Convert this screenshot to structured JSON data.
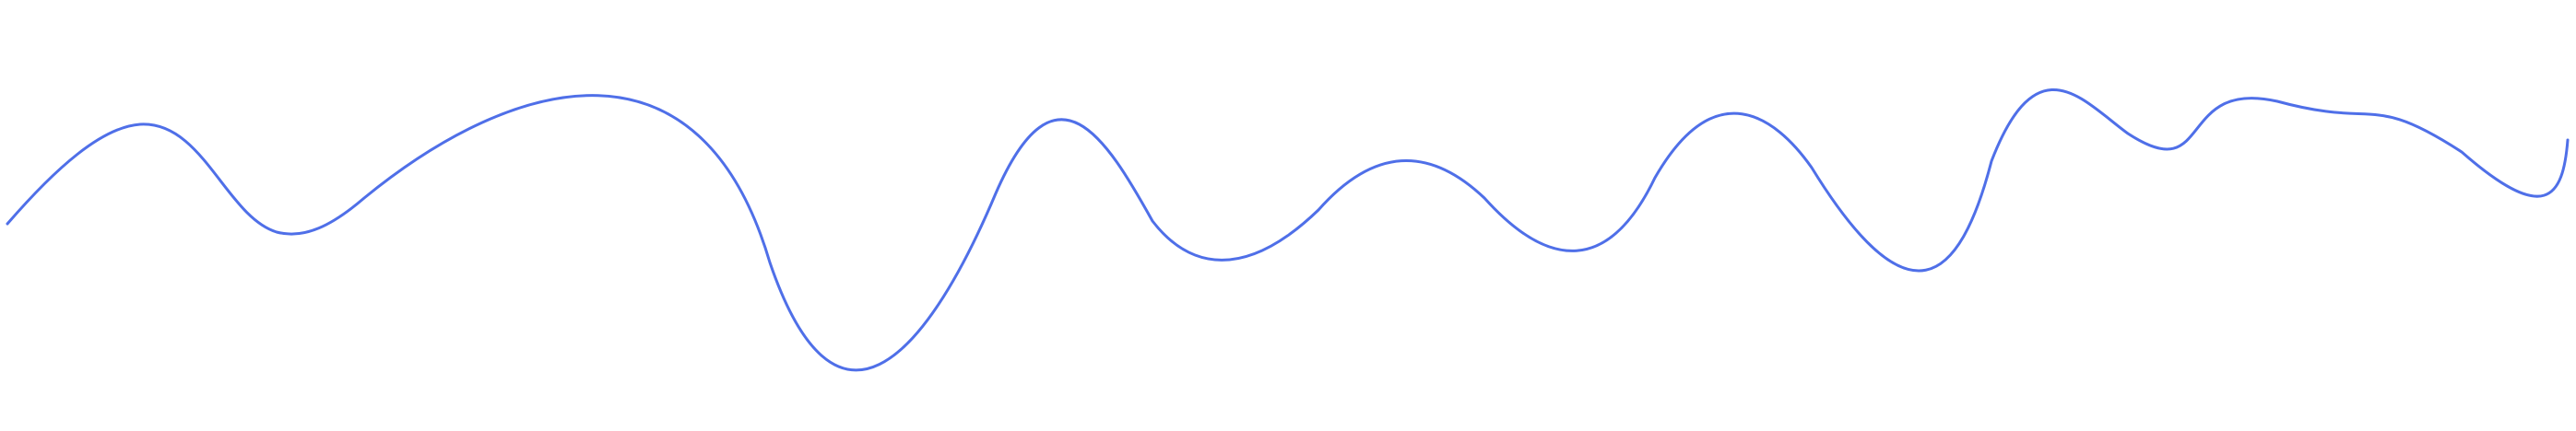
{
  "stroke_color": "#4f6fe8",
  "background_color": "#ffffff"
}
